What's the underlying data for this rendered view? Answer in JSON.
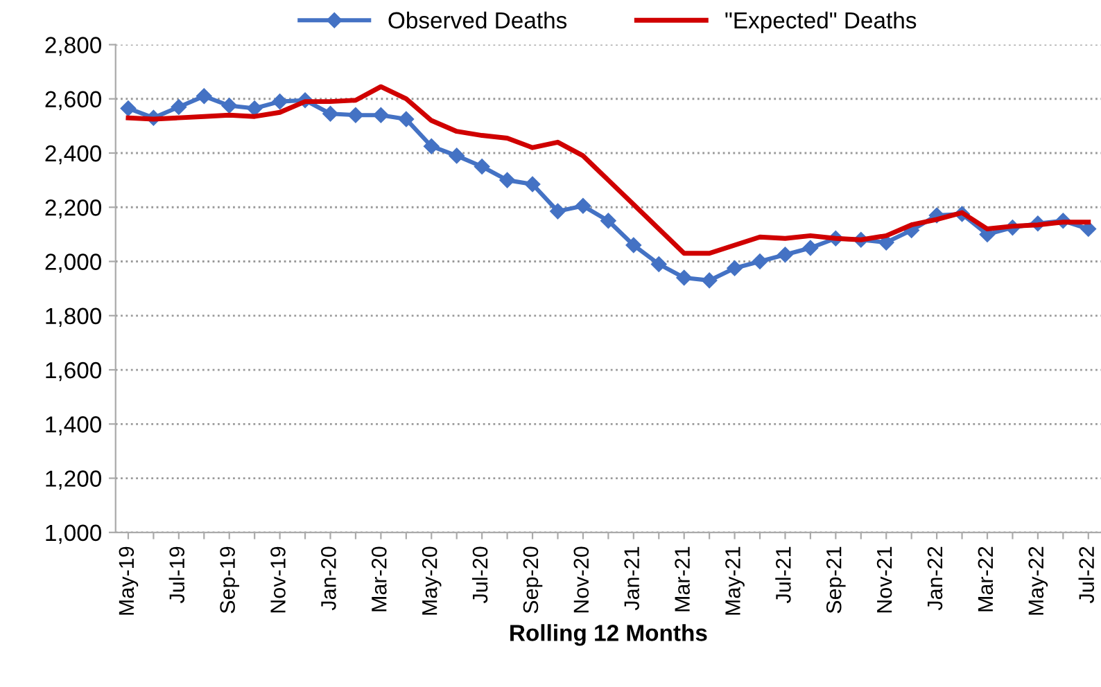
{
  "chart_data": {
    "type": "line",
    "xlabel": "Rolling 12 Months",
    "categories": [
      "May-19",
      null,
      "Jul-19",
      null,
      "Sep-19",
      null,
      "Nov-19",
      null,
      "Jan-20",
      null,
      "Mar-20",
      null,
      "May-20",
      null,
      "Jul-20",
      null,
      "Sep-20",
      null,
      "Nov-20",
      null,
      "Jan-21",
      null,
      "Mar-21",
      null,
      "May-21",
      null,
      "Jul-21",
      null,
      "Sep-21",
      null,
      "Nov-21",
      null,
      "Jan-22",
      null,
      "Mar-22",
      null,
      "May-22",
      null,
      "Jul-22"
    ],
    "series": [
      {
        "name": "Observed Deaths",
        "color": "#4472c4",
        "marker": "diamond",
        "values": [
          2565,
          2530,
          2570,
          2610,
          2575,
          2565,
          2590,
          2595,
          2545,
          2540,
          2540,
          2525,
          2425,
          2390,
          2350,
          2300,
          2285,
          2185,
          2205,
          2150,
          2060,
          1990,
          1940,
          1930,
          1975,
          2000,
          2025,
          2050,
          2085,
          2080,
          2070,
          2115,
          2170,
          2175,
          2100,
          2125,
          2140,
          2150,
          2120
        ]
      },
      {
        "name": "\"Expected\" Deaths",
        "color": "#d00000",
        "marker": "none",
        "values": [
          2530,
          2525,
          2530,
          2535,
          2540,
          2535,
          2550,
          2590,
          2590,
          2595,
          2645,
          2600,
          2520,
          2480,
          2465,
          2455,
          2420,
          2440,
          2390,
          2300,
          2210,
          2120,
          2030,
          2030,
          2060,
          2090,
          2085,
          2095,
          2085,
          2080,
          2095,
          2135,
          2155,
          2180,
          2120,
          2130,
          2135,
          2145,
          2145
        ]
      }
    ],
    "ylim": [
      1000,
      2800
    ],
    "yticks": [
      {
        "value": 1000,
        "label": "1,000"
      },
      {
        "value": 1200,
        "label": "1,200"
      },
      {
        "value": 1400,
        "label": "1,400"
      },
      {
        "value": 1600,
        "label": "1,600"
      },
      {
        "value": 1800,
        "label": "1,800"
      },
      {
        "value": 2000,
        "label": "2,000"
      },
      {
        "value": 2200,
        "label": "2,200"
      },
      {
        "value": 2400,
        "label": "2,400"
      },
      {
        "value": 2600,
        "label": "2,600"
      },
      {
        "value": 2800,
        "label": "2,800"
      }
    ],
    "grid": "y",
    "legend": "top",
    "line_style": "solid"
  }
}
